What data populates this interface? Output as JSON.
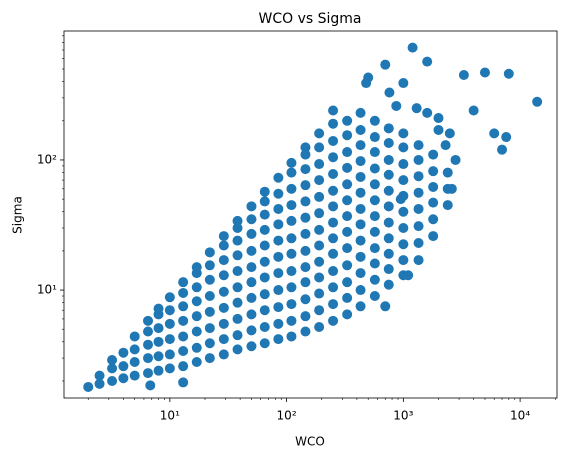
{
  "chart_data": {
    "type": "scatter",
    "title": "WCO vs Sigma",
    "xlabel": "WCO",
    "ylabel": "Sigma",
    "color": "#1f77b4",
    "xscale": "log",
    "yscale": "log",
    "xlim": [
      1.24,
      20700
    ],
    "ylim": [
      1.48,
      980
    ],
    "xticks": [
      {
        "value": 10,
        "label": "10¹"
      },
      {
        "value": 100,
        "label": "10²"
      },
      {
        "value": 1000,
        "label": "10³"
      },
      {
        "value": 10000,
        "label": "10⁴"
      }
    ],
    "yticks": [
      {
        "value": 10,
        "label": "10¹"
      },
      {
        "value": 100,
        "label": "10²"
      }
    ],
    "xminorticks": [
      2,
      3,
      4,
      5,
      6,
      7,
      8,
      9,
      20,
      30,
      40,
      50,
      60,
      70,
      80,
      90,
      200,
      300,
      400,
      500,
      600,
      700,
      800,
      900,
      2000,
      3000,
      4000,
      5000,
      6000,
      7000,
      8000,
      9000,
      20000
    ],
    "yminorticks": [
      2,
      3,
      4,
      5,
      6,
      7,
      8,
      9,
      20,
      30,
      40,
      50,
      60,
      70,
      80,
      90,
      200,
      300,
      400,
      500,
      600,
      700,
      800,
      900
    ],
    "x": [
      2,
      2.5,
      2.5,
      3.2,
      3.2,
      3.2,
      4,
      4,
      4,
      5,
      5,
      5,
      5,
      6.5,
      6.5,
      6.5,
      6.5,
      6.5,
      8,
      8,
      8,
      8,
      8,
      8,
      10,
      10,
      10,
      10,
      10,
      10,
      13,
      13,
      13,
      13,
      13,
      13,
      13,
      17,
      17,
      17,
      17,
      17,
      17,
      17,
      17,
      22,
      22,
      22,
      22,
      22,
      22,
      22,
      22,
      29,
      29,
      29,
      29,
      29,
      29,
      29,
      29,
      29,
      38,
      38,
      38,
      38,
      38,
      38,
      38,
      38,
      38,
      38,
      50,
      50,
      50,
      50,
      50,
      50,
      50,
      50,
      50,
      50,
      65,
      65,
      65,
      65,
      65,
      65,
      65,
      65,
      65,
      65,
      65,
      85,
      85,
      85,
      85,
      85,
      85,
      85,
      85,
      85,
      85,
      85,
      110,
      110,
      110,
      110,
      110,
      110,
      110,
      110,
      110,
      110,
      110,
      110,
      145,
      145,
      145,
      145,
      145,
      145,
      145,
      145,
      145,
      145,
      145,
      145,
      145,
      190,
      190,
      190,
      190,
      190,
      190,
      190,
      190,
      190,
      190,
      190,
      190,
      190,
      250,
      250,
      250,
      250,
      250,
      250,
      250,
      250,
      250,
      250,
      250,
      250,
      250,
      250,
      330,
      330,
      330,
      330,
      330,
      330,
      330,
      330,
      330,
      330,
      330,
      330,
      330,
      430,
      430,
      430,
      430,
      430,
      430,
      430,
      430,
      430,
      430,
      430,
      430,
      430,
      570,
      570,
      570,
      570,
      570,
      570,
      570,
      570,
      570,
      570,
      570,
      570,
      750,
      750,
      750,
      750,
      750,
      750,
      750,
      750,
      750,
      750,
      750,
      1000,
      1000,
      1000,
      1000,
      1000,
      1000,
      1000,
      1000,
      1000,
      1000,
      1350,
      1350,
      1350,
      1350,
      1350,
      1350,
      1350,
      1350,
      1800,
      1800,
      1800,
      1800,
      1800,
      1800,
      2400,
      2400,
      2400,
      1200,
      1600,
      1000,
      870,
      700,
      500,
      480,
      760,
      1300,
      2000,
      2300,
      2800,
      2600,
      3300,
      4000,
      5000,
      6000,
      7000,
      8000,
      7600,
      14000,
      700,
      1100,
      950,
      6.8,
      13,
      1600,
      2000,
      2500
    ],
    "values": [
      1.8,
      1.9,
      2.2,
      2,
      2.5,
      2.9,
      2.1,
      2.6,
      3.3,
      2.2,
      2.8,
      3.5,
      4.4,
      2.3,
      3,
      3.8,
      4.8,
      5.8,
      2.4,
      3.1,
      4,
      5.1,
      6.5,
      7.2,
      2.5,
      3.2,
      4.2,
      5.5,
      7,
      8.8,
      2.6,
      3.4,
      4.4,
      5.8,
      7.5,
      9.5,
      11.5,
      2.8,
      3.6,
      4.8,
      6.3,
      8.2,
      10.5,
      13.5,
      15,
      3,
      3.9,
      5.1,
      6.8,
      9,
      12,
      15.5,
      19.5,
      3.2,
      4.2,
      5.5,
      7.3,
      9.7,
      13,
      17,
      22,
      26,
      3.5,
      4.5,
      6,
      8,
      10.5,
      14,
      18.5,
      24,
      30,
      34,
      3.7,
      4.9,
      6.5,
      8.7,
      11.5,
      15,
      20,
      27,
      35,
      44,
      3.9,
      5.2,
      7,
      9.3,
      12.5,
      16.5,
      22,
      29,
      38,
      48,
      57,
      4.2,
      5.5,
      7.4,
      10,
      13.5,
      18,
      24,
      32,
      42,
      55,
      73,
      4.4,
      5.8,
      7.8,
      10.5,
      14,
      19,
      25,
      34,
      45,
      60,
      80,
      95,
      4.8,
      6.3,
      8.5,
      11.5,
      15,
      20,
      27,
      36,
      48,
      64,
      85,
      110,
      125,
      5.2,
      7,
      9.4,
      12.5,
      16.5,
      22,
      29,
      39,
      52,
      70,
      93,
      125,
      160,
      5.8,
      7.8,
      10.5,
      14,
      19,
      25,
      33,
      44,
      58,
      78,
      105,
      140,
      190,
      240,
      6.5,
      8.7,
      11.5,
      15.5,
      21,
      28,
      37,
      49,
      65,
      87,
      115,
      155,
      200,
      7.5,
      10,
      13.5,
      18,
      24,
      32,
      42,
      56,
      74,
      98,
      130,
      170,
      230,
      9,
      12,
      16,
      21,
      28,
      37,
      49,
      65,
      86,
      115,
      150,
      200,
      11,
      14.5,
      19,
      25,
      33,
      44,
      58,
      77,
      100,
      135,
      175,
      13,
      17,
      22.5,
      30,
      40,
      53,
      70,
      93,
      125,
      160,
      17,
      23,
      31,
      42,
      56,
      75,
      100,
      130,
      26,
      35,
      47,
      62,
      82,
      110,
      45,
      60,
      80,
      730,
      570,
      390,
      260,
      540,
      430,
      390,
      330,
      250,
      170,
      130,
      100,
      60,
      450,
      240,
      470,
      160,
      120,
      460,
      150,
      280,
      7.5,
      13,
      50,
      1.85,
      1.95,
      230,
      210,
      160
    ]
  }
}
